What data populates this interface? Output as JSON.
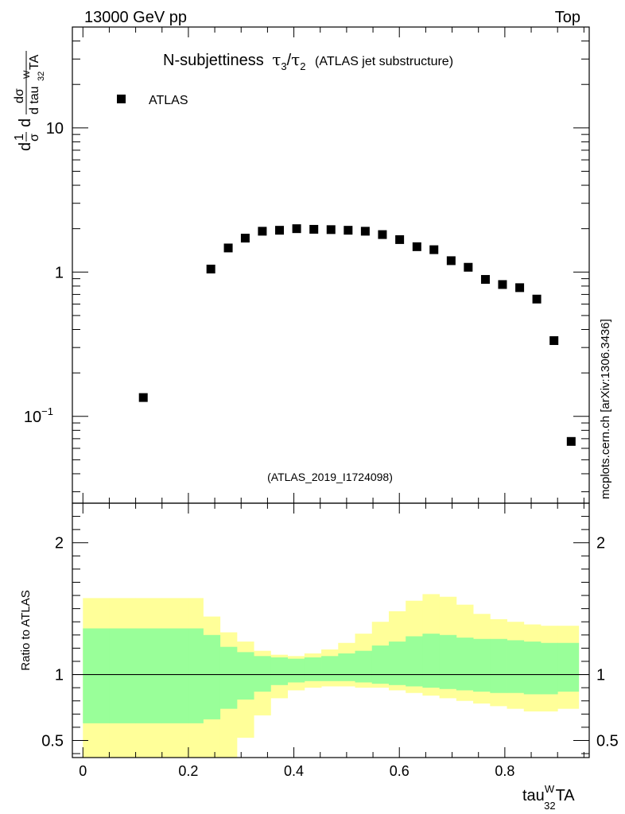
{
  "header": {
    "left": "13000 GeV pp",
    "right": "Top"
  },
  "side_label": "mcplots.cern.ch [arXiv:1306.3436]",
  "chart_data": {
    "type": "scatter",
    "title": "N-subjettiness",
    "title_symbol": "τ",
    "title_sub_a": "3",
    "title_sub_b": "2",
    "title_suffix": "(ATLAS jet substructure)",
    "analysis_id": "(ATLAS_2019_I1724098)",
    "legend": [
      "ATLAS"
    ],
    "xlabel_base": "tau",
    "xlabel_sup": "W",
    "xlabel_sub": "32",
    "xlabel_tail": "TA",
    "ylabel": {
      "d": "d",
      "one": "1",
      "sigma": "σ",
      "dsigma": "dσ",
      "d_tau": "d tau",
      "w": "W",
      "sub": "32",
      "ta": "TA"
    },
    "xlim": [
      -0.02,
      0.96
    ],
    "ylim_log": [
      0.025,
      50
    ],
    "x_ticks": [
      {
        "v": 0,
        "label": "0"
      },
      {
        "v": 0.2,
        "label": "0.2"
      },
      {
        "v": 0.4,
        "label": "0.4"
      },
      {
        "v": 0.6,
        "label": "0.6"
      },
      {
        "v": 0.8,
        "label": "0.8"
      }
    ],
    "y_ticks": [
      {
        "v": 0.1,
        "label": "10",
        "sup": "−1"
      },
      {
        "v": 1,
        "label": "1"
      },
      {
        "v": 10,
        "label": "10"
      }
    ],
    "series": [
      {
        "name": "ATLAS",
        "x": [
          0.1145,
          0.2426,
          0.2756,
          0.3078,
          0.3402,
          0.3728,
          0.4053,
          0.4379,
          0.4704,
          0.5029,
          0.5354,
          0.5679,
          0.6006,
          0.6333,
          0.6656,
          0.6982,
          0.7306,
          0.7632,
          0.7956,
          0.8282,
          0.8606,
          0.8932,
          0.9258
        ],
        "y": [
          0.135,
          1.05,
          1.47,
          1.72,
          1.92,
          1.95,
          2.0,
          1.98,
          1.97,
          1.95,
          1.92,
          1.82,
          1.68,
          1.5,
          1.43,
          1.2,
          1.08,
          0.89,
          0.82,
          0.78,
          0.65,
          0.335,
          0.067
        ]
      }
    ],
    "ratio": {
      "ylabel": "Ratio to ATLAS",
      "ylim": [
        0.37,
        2.3
      ],
      "y_ticks": [
        {
          "v": 0.5,
          "label": "0.5"
        },
        {
          "v": 1,
          "label": "1"
        },
        {
          "v": 2,
          "label": "2"
        }
      ],
      "bin_edges": [
        0.0,
        0.05,
        0.1,
        0.15,
        0.2,
        0.228,
        0.26,
        0.292,
        0.324,
        0.356,
        0.388,
        0.42,
        0.452,
        0.484,
        0.516,
        0.548,
        0.58,
        0.612,
        0.644,
        0.676,
        0.708,
        0.74,
        0.772,
        0.804,
        0.836,
        0.868,
        0.9,
        0.94
      ],
      "inner_up": [
        1.35,
        1.35,
        1.35,
        1.35,
        1.35,
        1.3,
        1.21,
        1.17,
        1.14,
        1.13,
        1.12,
        1.13,
        1.14,
        1.16,
        1.18,
        1.22,
        1.25,
        1.29,
        1.31,
        1.3,
        1.28,
        1.27,
        1.27,
        1.26,
        1.25,
        1.24,
        1.24
      ],
      "inner_dn": [
        0.63,
        0.63,
        0.63,
        0.63,
        0.63,
        0.66,
        0.74,
        0.81,
        0.87,
        0.92,
        0.94,
        0.95,
        0.95,
        0.95,
        0.94,
        0.93,
        0.92,
        0.91,
        0.9,
        0.89,
        0.88,
        0.87,
        0.86,
        0.86,
        0.85,
        0.85,
        0.87
      ],
      "outer_up": [
        1.58,
        1.58,
        1.58,
        1.58,
        1.58,
        1.44,
        1.32,
        1.25,
        1.18,
        1.15,
        1.14,
        1.16,
        1.19,
        1.24,
        1.31,
        1.4,
        1.48,
        1.56,
        1.61,
        1.59,
        1.53,
        1.46,
        1.42,
        1.4,
        1.38,
        1.37,
        1.37
      ],
      "outer_dn": [
        0.37,
        0.37,
        0.37,
        0.37,
        0.37,
        0.37,
        0.37,
        0.52,
        0.69,
        0.82,
        0.88,
        0.9,
        0.91,
        0.91,
        0.9,
        0.9,
        0.88,
        0.86,
        0.84,
        0.82,
        0.8,
        0.78,
        0.76,
        0.74,
        0.72,
        0.72,
        0.74
      ]
    },
    "colors": {
      "inner_band": "#99ff99",
      "outer_band": "#ffff99",
      "marker": "#000000",
      "analysis_id": "#999999",
      "side_label": "#777777"
    }
  }
}
